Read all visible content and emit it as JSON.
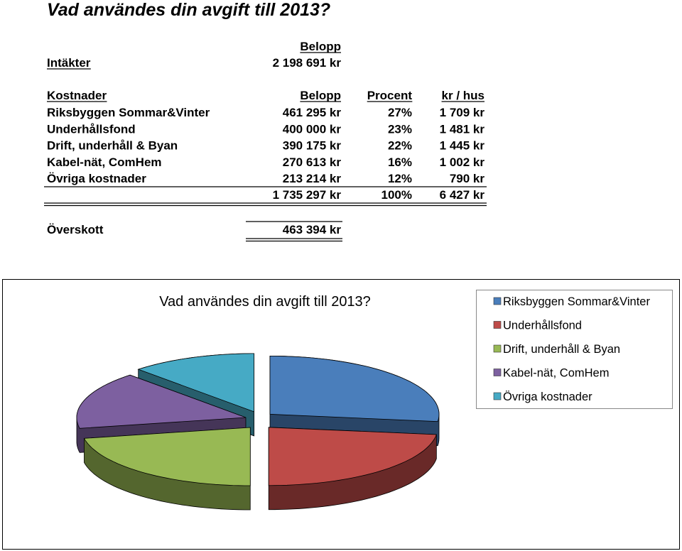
{
  "doc": {
    "title": "Vad användes din avgift till 2013?"
  },
  "income": {
    "header": "Belopp",
    "label": "Intäkter",
    "value": "2 198 691 kr"
  },
  "costs": {
    "header": [
      "Kostnader",
      "Belopp",
      "Procent",
      "kr / hus"
    ],
    "rows": [
      [
        "Riksbyggen Sommar&Vinter",
        "461 295 kr",
        "27%",
        "1 709 kr"
      ],
      [
        "Underhållsfond",
        "400 000 kr",
        "23%",
        "1 481 kr"
      ],
      [
        "Drift, underhåll & Byan",
        "390 175 kr",
        "22%",
        "1 445 kr"
      ],
      [
        "Kabel-nät, ComHem",
        "270 613 kr",
        "16%",
        "1 002 kr"
      ],
      [
        "Övriga kostnader",
        "213 214 kr",
        "12%",
        "790 kr"
      ]
    ],
    "total": [
      "1 735 297 kr",
      "100%",
      "6 427 kr"
    ]
  },
  "surplus": {
    "label": "Överskott",
    "value": "463 394 kr"
  },
  "chart_data": {
    "type": "pie",
    "title": "Vad användes din avgift till 2013?",
    "categories": [
      "Riksbyggen Sommar&Vinter",
      "Underhållsfond",
      "Drift, underhåll & Byan",
      "Kabel-nät, ComHem",
      "Övriga kostnader"
    ],
    "values": [
      27,
      23,
      22,
      16,
      12
    ],
    "colors": [
      "#4a7ebb",
      "#be4b48",
      "#98b954",
      "#7d60a0",
      "#46aac5"
    ]
  }
}
